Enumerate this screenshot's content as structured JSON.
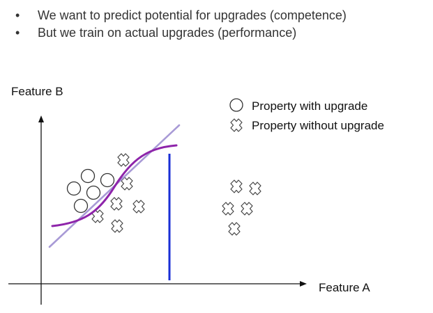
{
  "bullets": [
    "We want to predict potential for upgrades (competence)",
    "But we train on actual upgrades (performance)"
  ],
  "diagram": {
    "y_axis_label": "Feature B",
    "x_axis_label": "Feature A",
    "legend": [
      {
        "symbol": "circle-icon",
        "label": "Property with upgrade"
      },
      {
        "symbol": "cross-icon",
        "label": "Property without upgrade"
      }
    ],
    "colors": {
      "axis": "#111111",
      "linear_boundary": "#a89ad6",
      "curved_boundary": "#8e24aa",
      "vertical_boundary": "#1a2fd6",
      "marker_stroke": "#444444"
    }
  }
}
